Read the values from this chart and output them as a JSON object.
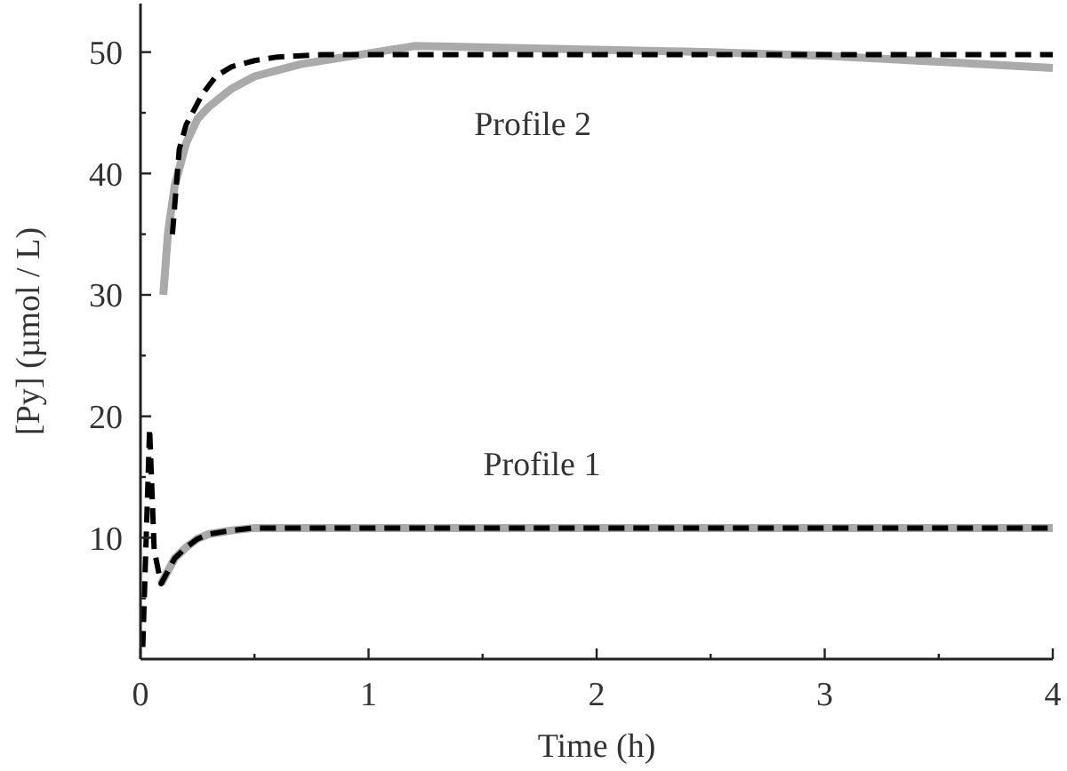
{
  "chart_data": {
    "type": "line",
    "xlabel": "Time (h)",
    "ylabel": "[Py] (µmol / L)",
    "xlim": [
      0,
      4
    ],
    "ylim": [
      0,
      54
    ],
    "xticks": [
      0,
      {
        "value": 0.5,
        "label": null
      },
      1,
      {
        "value": 1.5,
        "label": null
      },
      2,
      {
        "value": 2.5,
        "label": null
      },
      3,
      {
        "value": 3.5,
        "label": null
      },
      4
    ],
    "yticks": [
      {
        "value": 5,
        "label": null
      },
      10,
      {
        "value": 15,
        "label": null
      },
      20,
      {
        "value": 25,
        "label": null
      },
      30,
      {
        "value": 35,
        "label": null
      },
      40,
      {
        "value": 45,
        "label": null
      },
      50
    ],
    "grid": false,
    "annotations": [
      "Profile 2",
      "Profile 1"
    ],
    "series": [
      {
        "color": "#aaaaaa",
        "line_style": "solid",
        "x": [
          0.1,
          0.12,
          0.15,
          0.2,
          0.25,
          0.3,
          0.4,
          0.5,
          0.7,
          0.9,
          1.2,
          1.5,
          2,
          2.5,
          3,
          3.5,
          4
        ],
        "values": [
          30,
          35,
          39,
          42.5,
          44.5,
          45.5,
          47,
          48,
          49,
          49.6,
          50.5,
          50.4,
          50.2,
          50,
          49.7,
          49.2,
          48.7
        ]
      },
      {
        "color": "#000000",
        "line_style": "dashed",
        "x": [
          0.14,
          0.17,
          0.2,
          0.27,
          0.33,
          0.4,
          0.5,
          0.6,
          0.8,
          1,
          2,
          3,
          4
        ],
        "values": [
          35,
          42,
          44,
          46.5,
          48,
          48.8,
          49.3,
          49.6,
          49.8,
          49.8,
          49.8,
          49.8,
          49.8
        ]
      },
      {
        "color": "#aaaaaa",
        "line_style": "solid",
        "x": [
          0.09,
          0.15,
          0.2,
          0.25,
          0.3,
          0.4,
          0.5,
          0.7,
          1,
          2,
          3,
          4
        ],
        "values": [
          6.2,
          8.3,
          9.2,
          9.9,
          10.3,
          10.6,
          10.8,
          10.8,
          10.8,
          10.8,
          10.8,
          10.8
        ]
      },
      {
        "color": "#000000",
        "line_style": "dashed",
        "x": [
          0.01,
          0.04,
          0.06,
          0.09,
          0.15,
          0.2,
          0.25,
          0.3,
          0.4,
          0.5,
          0.7,
          1,
          2,
          3,
          4
        ],
        "values": [
          1,
          19,
          9,
          6.2,
          8.3,
          9.2,
          9.9,
          10.3,
          10.6,
          10.8,
          10.8,
          10.8,
          10.8,
          10.8,
          10.8
        ]
      }
    ]
  }
}
